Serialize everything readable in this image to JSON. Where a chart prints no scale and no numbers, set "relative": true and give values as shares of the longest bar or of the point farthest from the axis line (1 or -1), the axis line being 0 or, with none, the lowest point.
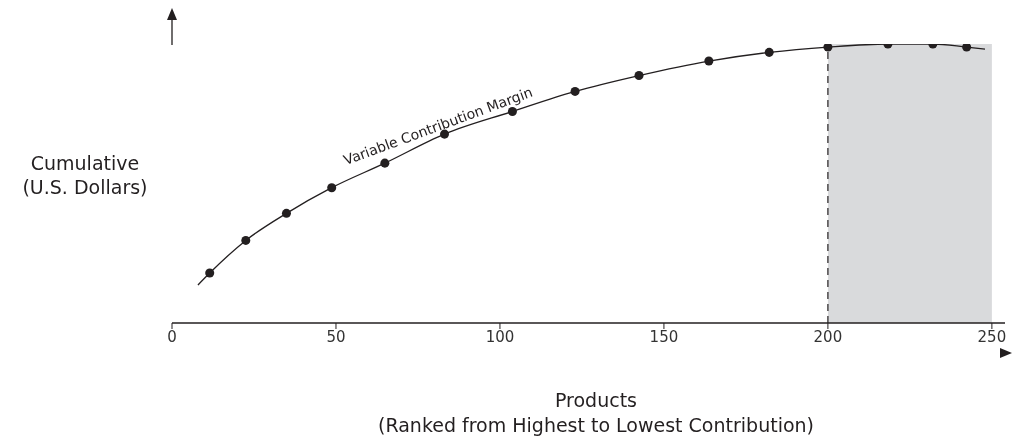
{
  "chart_data": {
    "type": "scatter",
    "relative": true,
    "xlabel": "Products\n(Ranked from Highest to Lowest Contribution)",
    "ylabel": "Cumulative\n(U.S. Dollars)",
    "xlim": [
      0,
      254
    ],
    "xticks": [
      0,
      50,
      100,
      150,
      200,
      250
    ],
    "grid": false,
    "series": [
      {
        "type": "line",
        "name": "Variable Contribution Margin",
        "color": "#231f20",
        "marker": "none",
        "line_style": "solid",
        "x": [
          7.9,
          11.5,
          22.5,
          34.9,
          48.7,
          64.9,
          83.1,
          103.8,
          122.9,
          142.4,
          163.7,
          182.1,
          200,
          218.3,
          232,
          242.3,
          247.9
        ],
        "values": [
          0.136,
          0.179,
          0.296,
          0.393,
          0.485,
          0.573,
          0.677,
          0.758,
          0.83,
          0.887,
          0.939,
          0.97,
          0.989,
          1,
          1,
          0.989,
          0.982
        ]
      },
      {
        "color": "#231f20",
        "marker": "circle",
        "x": [
          11.5,
          22.5,
          34.9,
          48.7,
          64.9,
          83.1,
          103.8,
          122.9,
          142.4,
          163.7,
          182.1,
          200,
          218.3,
          232,
          242.3
        ],
        "values": [
          0.179,
          0.296,
          0.393,
          0.485,
          0.573,
          0.677,
          0.758,
          0.83,
          0.887,
          0.939,
          0.97,
          0.989,
          1,
          1,
          0.989
        ]
      }
    ],
    "ref_lines": [
      {
        "axis": "x",
        "value": 200,
        "color": "#231f20",
        "line_style": "dashed"
      }
    ],
    "bands": [
      {
        "axis": "x",
        "from": 200,
        "to": 250,
        "color": "#d9dadc"
      }
    ]
  }
}
